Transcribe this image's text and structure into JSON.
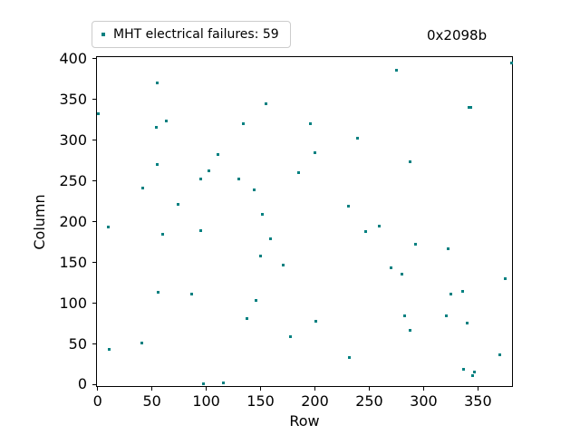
{
  "figure": {
    "legend": {
      "label": "MHT electrical failures: 59",
      "marker_color": "#008080"
    },
    "annotation": "0x2098b"
  },
  "chart_data": {
    "type": "scatter",
    "title": "",
    "xlabel": "Row",
    "ylabel": "Column",
    "marker": "square",
    "marker_color": "#008080",
    "grid": false,
    "legend_position": "upper left, outside axes",
    "xlim": [
      -1.4,
      382.2
    ],
    "ylim": [
      -2.8,
      403.3
    ],
    "xticks": [
      0,
      50,
      100,
      150,
      200,
      250,
      300,
      350
    ],
    "yticks": [
      0,
      50,
      100,
      150,
      200,
      250,
      300,
      350,
      400
    ],
    "series": [
      {
        "name": "MHT electrical failures",
        "count": 59,
        "color": "#008080",
        "points": [
          [
            0,
            334
          ],
          [
            9,
            195
          ],
          [
            10,
            45
          ],
          [
            40,
            52
          ],
          [
            41,
            242
          ],
          [
            53,
            317
          ],
          [
            54,
            372
          ],
          [
            54,
            272
          ],
          [
            55,
            115
          ],
          [
            59,
            186
          ],
          [
            62,
            325
          ],
          [
            73,
            222
          ],
          [
            86,
            112
          ],
          [
            94,
            254
          ],
          [
            94,
            190
          ],
          [
            97,
            2
          ],
          [
            102,
            264
          ],
          [
            110,
            284
          ],
          [
            115,
            3
          ],
          [
            129,
            254
          ],
          [
            133,
            321
          ],
          [
            137,
            82
          ],
          [
            143,
            240
          ],
          [
            145,
            105
          ],
          [
            149,
            159
          ],
          [
            151,
            210
          ],
          [
            154,
            346
          ],
          [
            158,
            180
          ],
          [
            170,
            148
          ],
          [
            177,
            60
          ],
          [
            184,
            261
          ],
          [
            195,
            321
          ],
          [
            199,
            286
          ],
          [
            200,
            79
          ],
          [
            230,
            220
          ],
          [
            231,
            34
          ],
          [
            238,
            304
          ],
          [
            246,
            189
          ],
          [
            258,
            196
          ],
          [
            269,
            145
          ],
          [
            274,
            387
          ],
          [
            279,
            137
          ],
          [
            282,
            86
          ],
          [
            287,
            275
          ],
          [
            287,
            68
          ],
          [
            292,
            174
          ],
          [
            320,
            86
          ],
          [
            322,
            168
          ],
          [
            324,
            112
          ],
          [
            335,
            116
          ],
          [
            336,
            20
          ],
          [
            339,
            77
          ],
          [
            341,
            341
          ],
          [
            343,
            341
          ],
          [
            344,
            12
          ],
          [
            346,
            17
          ],
          [
            369,
            38
          ],
          [
            374,
            131
          ],
          [
            380,
            396
          ]
        ]
      }
    ]
  }
}
